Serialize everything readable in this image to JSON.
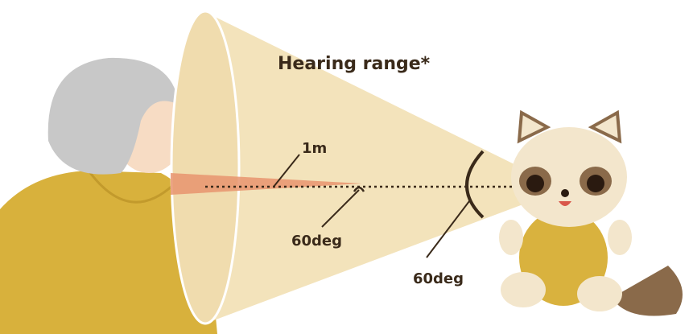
{
  "labels": {
    "hearing_range": "Hearing range*",
    "distance": "1m",
    "angles": [
      "60deg",
      "60deg"
    ]
  }
}
